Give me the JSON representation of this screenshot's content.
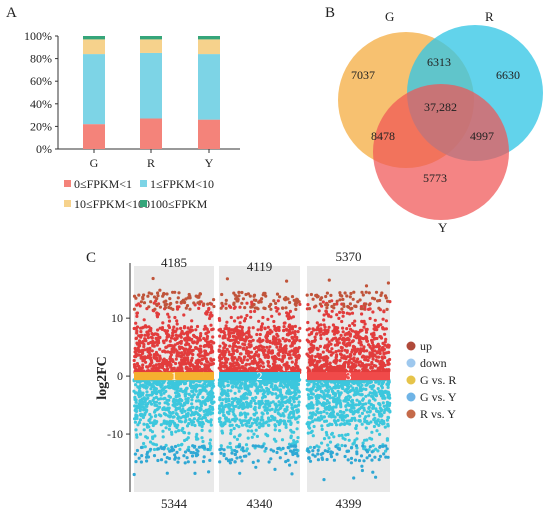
{
  "panels": {
    "a": "A",
    "b": "B",
    "c": "C"
  },
  "colors": {
    "fpkm_0_1": "#f4837a",
    "fpkm_1_10": "#7dd4e6",
    "fpkm_10_100": "#f6d28c",
    "fpkm_100": "#35a57a",
    "venn_g": "#f5b24c",
    "venn_r": "#36c6e6",
    "venn_y": "#f05454",
    "up": "#e23c3c",
    "up_top": "#c0543a",
    "down": "#3cc7dd",
    "down_bottom": "#2fa8d4",
    "band_g_r": "#f5b02f",
    "band_g_y": "#33c3e0",
    "band_r_y": "#f04a4a",
    "legend_up": "#b04a3a",
    "legend_down": "#9ec8ee",
    "legend_g_r": "#e6c44a",
    "legend_g_y": "#6fb4e6",
    "legend_r_y": "#c56a4a"
  },
  "chart_data": [
    {
      "type": "bar",
      "stacked": true,
      "categories": [
        "G",
        "R",
        "Y"
      ],
      "y_ticks": [
        "0%",
        "20%",
        "40%",
        "60%",
        "80%",
        "100%"
      ],
      "ylim": [
        0,
        100
      ],
      "series": [
        {
          "name": "0≤FPKM<1",
          "values": [
            22,
            27,
            26
          ]
        },
        {
          "name": "1≤FPKM<10",
          "values": [
            62,
            58,
            58
          ]
        },
        {
          "name": "10≤FPKM<100",
          "values": [
            13,
            12,
            13
          ]
        },
        {
          "name": "100≤FPKM",
          "values": [
            3,
            3,
            3
          ]
        }
      ]
    },
    {
      "type": "venn",
      "sets": [
        "G",
        "R",
        "Y"
      ],
      "regions": {
        "G_only": "7037",
        "R_only": "6630",
        "Y_only": "5773",
        "G_R": "6313",
        "G_Y": "8478",
        "R_Y": "4997",
        "G_R_Y": "37,282"
      }
    },
    {
      "type": "scatter",
      "ylabel": "log2FC",
      "y_ticks": [
        "10",
        "0",
        "-10"
      ],
      "ylim": [
        -20,
        19
      ],
      "comparisons": [
        {
          "label": "1",
          "name": "G vs. R",
          "up": "4185",
          "down": "5344"
        },
        {
          "label": "2",
          "name": "G vs. Y",
          "up": "4119",
          "down": "4340"
        },
        {
          "label": "3",
          "name": "R vs. Y",
          "up": "5370",
          "down": "4399"
        }
      ],
      "legend": [
        "up",
        "down",
        "G vs. R",
        "G vs. Y",
        "R vs. Y"
      ]
    }
  ]
}
